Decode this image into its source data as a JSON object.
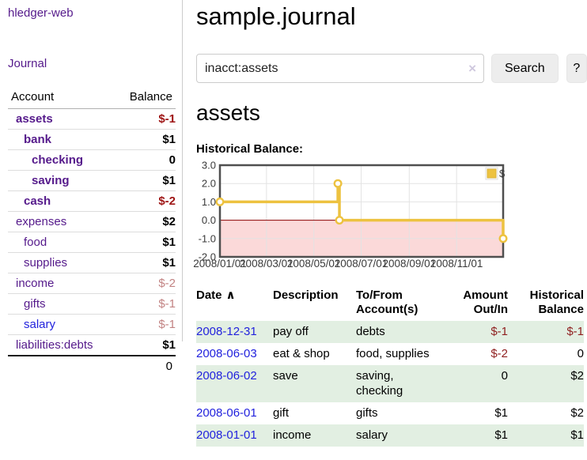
{
  "app": {
    "title": "hledger-web"
  },
  "sidebar": {
    "nav": [
      {
        "label": "Journal"
      }
    ],
    "accounts_table": {
      "headers": [
        "Account",
        "Balance"
      ],
      "rows": [
        {
          "account": "assets",
          "balance": "$-1",
          "depth": 1,
          "bold": true,
          "balance_style": "neg-strong",
          "link_color": "purple"
        },
        {
          "account": "bank",
          "balance": "$1",
          "depth": 2,
          "bold": true,
          "balance_style": "pos",
          "link_color": "purple"
        },
        {
          "account": "checking",
          "balance": "0",
          "depth": 3,
          "bold": true,
          "balance_style": "pos",
          "link_color": "purple"
        },
        {
          "account": "saving",
          "balance": "$1",
          "depth": 3,
          "bold": true,
          "balance_style": "pos",
          "link_color": "purple"
        },
        {
          "account": "cash",
          "balance": "$-2",
          "depth": 2,
          "bold": true,
          "balance_style": "neg-strong",
          "link_color": "purple"
        },
        {
          "account": "expenses",
          "balance": "$2",
          "depth": 1,
          "bold": false,
          "balance_style": "pos",
          "link_color": "purple"
        },
        {
          "account": "food",
          "balance": "$1",
          "depth": 2,
          "bold": false,
          "balance_style": "pos",
          "link_color": "purple"
        },
        {
          "account": "supplies",
          "balance": "$1",
          "depth": 2,
          "bold": false,
          "balance_style": "pos",
          "link_color": "purple"
        },
        {
          "account": "income",
          "balance": "$-2",
          "depth": 1,
          "bold": false,
          "balance_style": "neg-soft",
          "link_color": "purple"
        },
        {
          "account": "gifts",
          "balance": "$-1",
          "depth": 2,
          "bold": false,
          "balance_style": "neg-soft",
          "link_color": "purple"
        },
        {
          "account": "salary",
          "balance": "$-1",
          "depth": 2,
          "bold": false,
          "balance_style": "neg-soft",
          "link_color": "blue"
        },
        {
          "account": "liabilities:debts",
          "balance": "$1",
          "depth": 1,
          "bold": false,
          "balance_style": "pos",
          "link_color": "purple"
        }
      ],
      "total": "0"
    }
  },
  "header": {
    "title": "sample.journal"
  },
  "search": {
    "value": "inacct:assets",
    "clear_icon": "×",
    "button_label": "Search",
    "help_label": "?"
  },
  "account_page": {
    "title": "assets",
    "chart_label": "Historical Balance:"
  },
  "chart_data": {
    "type": "line",
    "step": true,
    "title": "Historical Balance",
    "series": [
      {
        "name": "$",
        "color": "#EDC240",
        "points": [
          [
            "2008/01/01",
            1
          ],
          [
            "2008/06/01",
            2
          ],
          [
            "2008/06/03",
            0
          ],
          [
            "2008/12/31",
            -1
          ]
        ]
      }
    ],
    "xlim": [
      "2008/01/01",
      "2008/12/31"
    ],
    "ylim": [
      -2,
      3
    ],
    "x_ticks": [
      "2008/01/01",
      "2008/03/01",
      "2008/05/01",
      "2008/07/01",
      "2008/09/01",
      "2008/11/01"
    ],
    "y_ticks": [
      "3.0",
      "2.0",
      "1.0",
      "0.0",
      "-1.0",
      "-2.0"
    ],
    "legend": {
      "label": "$",
      "position": "top-right"
    },
    "grid": true,
    "colors": {
      "negative_region": "#fbd9d9",
      "zero_line": "#8b0000",
      "gridline": "#e3e3e3",
      "border": "#4f4f4f",
      "marker_fill": "#ffffff"
    }
  },
  "register_table": {
    "headers": {
      "date": "Date",
      "sort_indicator": "∧",
      "description": "Description",
      "accounts": "To/From Account(s)",
      "amount": "Amount Out/In",
      "balance": "Historical Balance"
    },
    "rows": [
      {
        "date": "2008-12-31",
        "description": "pay off",
        "accounts": "debts",
        "amount": "$-1",
        "balance": "$-1"
      },
      {
        "date": "2008-06-03",
        "description": "eat & shop",
        "accounts": "food, supplies",
        "amount": "$-2",
        "balance": "0"
      },
      {
        "date": "2008-06-02",
        "description": "save",
        "accounts": "saving, checking",
        "amount": "0",
        "balance": "$2"
      },
      {
        "date": "2008-06-01",
        "description": "gift",
        "accounts": "gifts",
        "amount": "$1",
        "balance": "$2"
      },
      {
        "date": "2008-01-01",
        "description": "income",
        "accounts": "salary",
        "amount": "$1",
        "balance": "$1"
      }
    ]
  },
  "colors": {
    "link_purple": "#551A8B",
    "link_blue": "#2222dd",
    "negative_strong": "#9e1414",
    "negative_table": "#8f1f1f",
    "negative_soft": "#c28383",
    "row_green": "#e2efe2",
    "chart_yellow": "#EDC240"
  }
}
